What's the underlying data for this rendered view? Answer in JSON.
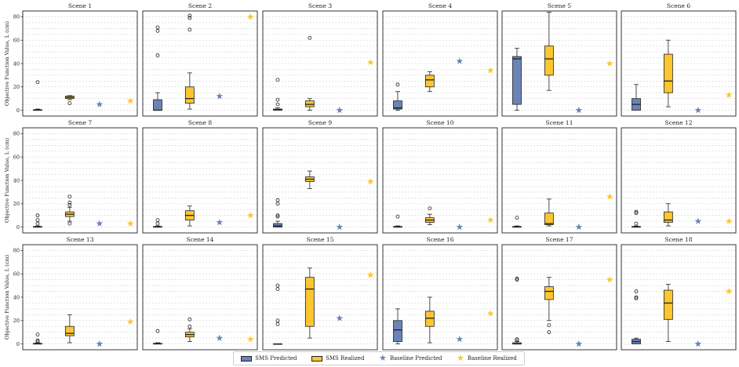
{
  "figure": {
    "ylabel": "Objective Function Value, L (cm)",
    "colors": {
      "sms_predicted": "#6a84b8",
      "sms_realized": "#fbc62f",
      "baseline_predicted": "#6a84b8",
      "baseline_realized": "#fbc62f"
    }
  },
  "legend": {
    "sms_predicted": "SMS Predicted",
    "sms_realized": "SMS Realized",
    "baseline_predicted": "Baseline Predicted",
    "baseline_realized": "Baseline Realized"
  },
  "chart_data": {
    "type": "box",
    "ylim": [
      -5,
      85
    ],
    "yticks": [
      0,
      20,
      40,
      60,
      80
    ],
    "ylabel": "Objective Function Value, L (cm)",
    "scenes": [
      {
        "title": "Scene 1",
        "sms_predicted": {
          "whislo": 0,
          "q1": 0,
          "med": 0,
          "q3": 0.5,
          "whishi": 1,
          "fliers": [
            24
          ]
        },
        "sms_realized": {
          "whislo": 9,
          "q1": 10,
          "med": 11,
          "q3": 12,
          "whishi": 12.5,
          "fliers": [
            6
          ]
        },
        "baseline_predicted": 5,
        "baseline_realized": 8
      },
      {
        "title": "Scene 2",
        "sms_predicted": {
          "whislo": 0,
          "q1": 0,
          "med": 0,
          "q3": 9,
          "whishi": 15,
          "fliers": [
            47,
            68,
            71
          ]
        },
        "sms_realized": {
          "whislo": 1,
          "q1": 6,
          "med": 10,
          "q3": 20,
          "whishi": 32,
          "fliers": [
            69,
            79,
            81
          ]
        },
        "baseline_predicted": 12,
        "baseline_realized": 80
      },
      {
        "title": "Scene 3",
        "sms_predicted": {
          "whislo": 0,
          "q1": 0,
          "med": 0.5,
          "q3": 1,
          "whishi": 2,
          "fliers": [
            5,
            9,
            26
          ]
        },
        "sms_realized": {
          "whislo": 0,
          "q1": 3,
          "med": 5,
          "q3": 8,
          "whishi": 10,
          "fliers": [
            62
          ]
        },
        "baseline_predicted": 0,
        "baseline_realized": 41
      },
      {
        "title": "Scene 4",
        "sms_predicted": {
          "whislo": 0,
          "q1": 1,
          "med": 2,
          "q3": 8,
          "whishi": 16,
          "fliers": [
            22
          ]
        },
        "sms_realized": {
          "whislo": 16,
          "q1": 20,
          "med": 26,
          "q3": 30,
          "whishi": 33,
          "fliers": []
        },
        "baseline_predicted": 42,
        "baseline_realized": 34
      },
      {
        "title": "Scene 5",
        "sms_predicted": {
          "whislo": 0,
          "q1": 5,
          "med": 44,
          "q3": 46,
          "whishi": 53,
          "fliers": []
        },
        "sms_realized": {
          "whislo": 17,
          "q1": 30,
          "med": 44,
          "q3": 55,
          "whishi": 84,
          "fliers": []
        },
        "baseline_predicted": 0,
        "baseline_realized": 40
      },
      {
        "title": "Scene 6",
        "sms_predicted": {
          "whislo": 0,
          "q1": 0,
          "med": 5,
          "q3": 10,
          "whishi": 22,
          "fliers": []
        },
        "sms_realized": {
          "whislo": 3,
          "q1": 15,
          "med": 25,
          "q3": 48,
          "whishi": 60,
          "fliers": []
        },
        "baseline_predicted": 0,
        "baseline_realized": 13
      },
      {
        "title": "Scene 7",
        "sms_predicted": {
          "whislo": 0,
          "q1": 0,
          "med": 0,
          "q3": 0.5,
          "whishi": 1,
          "fliers": [
            3,
            6,
            10
          ]
        },
        "sms_realized": {
          "whislo": 5,
          "q1": 9,
          "med": 11,
          "q3": 13,
          "whishi": 17,
          "fliers": [
            3,
            19,
            21,
            26
          ]
        },
        "baseline_predicted": 3,
        "baseline_realized": 3
      },
      {
        "title": "Scene 8",
        "sms_predicted": {
          "whislo": 0,
          "q1": 0,
          "med": 0,
          "q3": 0.5,
          "whishi": 1,
          "fliers": [
            3,
            6
          ]
        },
        "sms_realized": {
          "whislo": 1,
          "q1": 6,
          "med": 10,
          "q3": 14,
          "whishi": 18,
          "fliers": []
        },
        "baseline_predicted": 4,
        "baseline_realized": 10
      },
      {
        "title": "Scene 9",
        "sms_predicted": {
          "whislo": 0,
          "q1": 0,
          "med": 1,
          "q3": 3,
          "whishi": 5,
          "fliers": [
            9,
            10,
            20,
            23
          ]
        },
        "sms_realized": {
          "whislo": 33,
          "q1": 39,
          "med": 41,
          "q3": 43,
          "whishi": 48,
          "fliers": []
        },
        "baseline_predicted": 0,
        "baseline_realized": 39
      },
      {
        "title": "Scene 10",
        "sms_predicted": {
          "whislo": 0,
          "q1": 0,
          "med": 0,
          "q3": 0.5,
          "whishi": 1,
          "fliers": [
            9
          ]
        },
        "sms_realized": {
          "whislo": 2,
          "q1": 4,
          "med": 6,
          "q3": 8,
          "whishi": 11,
          "fliers": [
            16
          ]
        },
        "baseline_predicted": 0,
        "baseline_realized": 6
      },
      {
        "title": "Scene 11",
        "sms_predicted": {
          "whislo": 0,
          "q1": 0,
          "med": 0,
          "q3": 0.5,
          "whishi": 1,
          "fliers": [
            8
          ]
        },
        "sms_realized": {
          "whislo": 1,
          "q1": 2,
          "med": 3,
          "q3": 12,
          "whishi": 24,
          "fliers": []
        },
        "baseline_predicted": 0,
        "baseline_realized": 26
      },
      {
        "title": "Scene 12",
        "sms_predicted": {
          "whislo": 0,
          "q1": 0,
          "med": 0,
          "q3": 0.5,
          "whishi": 1,
          "fliers": [
            3,
            12,
            13
          ]
        },
        "sms_realized": {
          "whislo": 1,
          "q1": 4,
          "med": 6,
          "q3": 13,
          "whishi": 20,
          "fliers": []
        },
        "baseline_predicted": 5,
        "baseline_realized": 5
      },
      {
        "title": "Scene 13",
        "sms_predicted": {
          "whislo": 0,
          "q1": 0,
          "med": 0,
          "q3": 0.5,
          "whishi": 1,
          "fliers": [
            2,
            3,
            8
          ]
        },
        "sms_realized": {
          "whislo": 1,
          "q1": 7,
          "med": 9,
          "q3": 15,
          "whishi": 25,
          "fliers": []
        },
        "baseline_predicted": 0,
        "baseline_realized": 19
      },
      {
        "title": "Scene 14",
        "sms_predicted": {
          "whislo": 0,
          "q1": 0,
          "med": 0,
          "q3": 0.5,
          "whishi": 1,
          "fliers": [
            11
          ]
        },
        "sms_realized": {
          "whislo": 2,
          "q1": 6,
          "med": 8,
          "q3": 10,
          "whishi": 13,
          "fliers": [
            15,
            21
          ]
        },
        "baseline_predicted": 5,
        "baseline_realized": 4
      },
      {
        "title": "Scene 15",
        "sms_predicted": {
          "whislo": 0,
          "q1": 0,
          "med": 0,
          "q3": 0,
          "whishi": 0,
          "fliers": [
            17,
            20,
            47,
            50
          ]
        },
        "sms_realized": {
          "whislo": 5,
          "q1": 15,
          "med": 47,
          "q3": 57,
          "whishi": 65,
          "fliers": []
        },
        "baseline_predicted": 22,
        "baseline_realized": 59
      },
      {
        "title": "Scene 16",
        "sms_predicted": {
          "whislo": 0,
          "q1": 2,
          "med": 12,
          "q3": 20,
          "whishi": 30,
          "fliers": []
        },
        "sms_realized": {
          "whislo": 1,
          "q1": 15,
          "med": 22,
          "q3": 28,
          "whishi": 40,
          "fliers": []
        },
        "baseline_predicted": 4,
        "baseline_realized": 26
      },
      {
        "title": "Scene 17",
        "sms_predicted": {
          "whislo": 0,
          "q1": 0,
          "med": 0,
          "q3": 1,
          "whishi": 2,
          "fliers": [
            3,
            4,
            55,
            56
          ]
        },
        "sms_realized": {
          "whislo": 20,
          "q1": 38,
          "med": 45,
          "q3": 49,
          "whishi": 57,
          "fliers": [
            10,
            16
          ]
        },
        "baseline_predicted": 0,
        "baseline_realized": 55
      },
      {
        "title": "Scene 18",
        "sms_predicted": {
          "whislo": 0,
          "q1": 0,
          "med": 2,
          "q3": 4,
          "whishi": 5,
          "fliers": [
            39,
            40,
            45
          ]
        },
        "sms_realized": {
          "whislo": 2,
          "q1": 21,
          "med": 35,
          "q3": 46,
          "whishi": 51,
          "fliers": []
        },
        "baseline_predicted": 0,
        "baseline_realized": 45
      }
    ]
  }
}
